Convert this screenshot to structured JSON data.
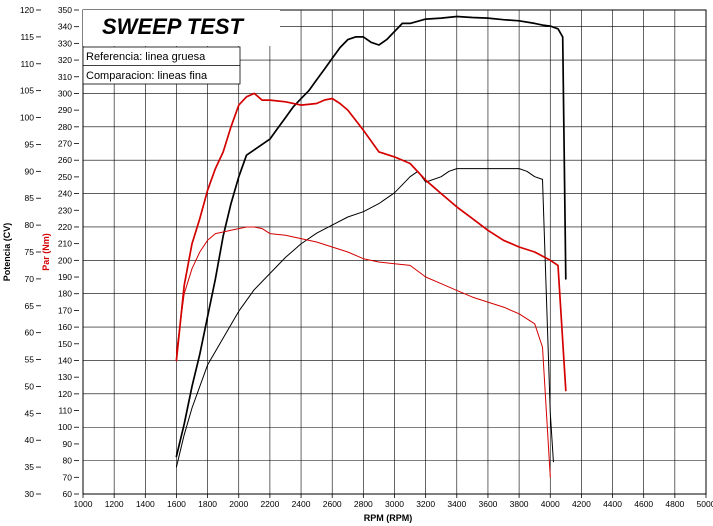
{
  "chart_data": {
    "type": "line",
    "title": "SWEEP TEST",
    "xlabel": "RPM (RPM)",
    "ylabel_left": "Potencia (CV)",
    "ylabel_right": "Par (Nm)",
    "xlim": [
      1000,
      5000
    ],
    "x_ticks": [
      1000,
      1200,
      1400,
      1600,
      1800,
      2000,
      2200,
      2400,
      2600,
      2800,
      3000,
      3200,
      3400,
      3600,
      3800,
      4000,
      4200,
      4400,
      4600,
      4800,
      5000
    ],
    "ylim_power": [
      30,
      120
    ],
    "power_ticks": [
      30,
      35,
      40,
      45,
      50,
      55,
      60,
      65,
      70,
      75,
      80,
      85,
      90,
      95,
      100,
      105,
      110,
      115,
      120
    ],
    "ylim_torque": [
      60,
      350
    ],
    "torque_ticks": [
      60,
      70,
      80,
      90,
      100,
      110,
      120,
      130,
      140,
      150,
      160,
      170,
      180,
      190,
      200,
      210,
      220,
      230,
      240,
      250,
      260,
      270,
      280,
      290,
      300,
      310,
      320,
      330,
      340,
      350
    ],
    "grid": true,
    "legend": [
      "Referencia: linea gruesa",
      "Comparacion: lineas fina"
    ],
    "series": [
      {
        "axis": "power",
        "color": "#000000",
        "width": "thick",
        "x": [
          1600,
          1650,
          1700,
          1750,
          1800,
          1850,
          1900,
          1950,
          2000,
          2050,
          2100,
          2150,
          2200,
          2250,
          2300,
          2350,
          2400,
          2450,
          2500,
          2550,
          2600,
          2650,
          2700,
          2750,
          2800,
          2850,
          2900,
          2950,
          3000,
          3050,
          3100,
          3200,
          3300,
          3400,
          3500,
          3600,
          3700,
          3800,
          3900,
          3950,
          4000,
          4050,
          4080,
          4100
        ],
        "y": [
          37,
          43,
          50,
          56,
          63,
          70,
          78,
          84,
          89,
          93,
          94,
          95,
          96,
          98,
          100,
          102,
          103.5,
          105,
          107,
          109,
          111,
          113,
          114.5,
          115,
          115,
          114,
          113.5,
          114.5,
          116,
          117.5,
          117.5,
          118.3,
          118.5,
          118.8,
          118.6,
          118.5,
          118.2,
          118,
          117.5,
          117.2,
          117,
          116.5,
          115,
          70
        ]
      },
      {
        "axis": "power",
        "color": "#000000",
        "width": "thin",
        "x": [
          1600,
          1650,
          1700,
          1750,
          1800,
          1900,
          2000,
          2100,
          2200,
          2300,
          2400,
          2500,
          2600,
          2700,
          2800,
          2900,
          3000,
          3050,
          3100,
          3150,
          3200,
          3300,
          3350,
          3400,
          3500,
          3600,
          3700,
          3800,
          3850,
          3900,
          3950,
          4000,
          4020
        ],
        "y": [
          35,
          41,
          46,
          50,
          54,
          59,
          64,
          68,
          71,
          74,
          76.5,
          78.5,
          80,
          81.5,
          82.5,
          84,
          86,
          87.5,
          89,
          90,
          88,
          89,
          90,
          90.5,
          90.5,
          90.5,
          90.5,
          90.5,
          90,
          89,
          88.5,
          45,
          36
        ]
      },
      {
        "axis": "torque",
        "color": "#d40000",
        "width": "thick",
        "x": [
          1600,
          1650,
          1700,
          1750,
          1800,
          1850,
          1900,
          1950,
          2000,
          2050,
          2100,
          2150,
          2200,
          2300,
          2400,
          2500,
          2550,
          2600,
          2650,
          2700,
          2800,
          2900,
          3000,
          3100,
          3200,
          3300,
          3400,
          3500,
          3600,
          3700,
          3800,
          3900,
          4000,
          4050,
          4100
        ],
        "y": [
          140,
          185,
          210,
          225,
          242,
          255,
          265,
          280,
          293,
          298,
          300,
          296,
          296,
          295,
          293,
          294,
          296,
          297,
          294,
          290,
          278,
          265,
          262,
          258,
          248,
          240,
          232,
          225,
          218,
          212,
          208,
          205,
          200,
          197,
          122
        ]
      },
      {
        "axis": "torque",
        "color": "#d40000",
        "width": "thin",
        "x": [
          1600,
          1650,
          1700,
          1750,
          1800,
          1850,
          1900,
          1950,
          2000,
          2050,
          2100,
          2150,
          2200,
          2300,
          2400,
          2500,
          2600,
          2700,
          2800,
          2900,
          3000,
          3100,
          3200,
          3300,
          3400,
          3500,
          3600,
          3700,
          3800,
          3900,
          3950,
          4000
        ],
        "y": [
          145,
          180,
          195,
          205,
          212,
          216,
          217,
          218,
          219,
          220,
          220,
          219,
          216,
          215,
          213,
          211,
          208,
          205,
          201,
          199,
          198,
          197,
          190,
          186,
          182,
          178,
          175,
          172,
          168,
          162,
          148,
          70
        ]
      }
    ]
  }
}
